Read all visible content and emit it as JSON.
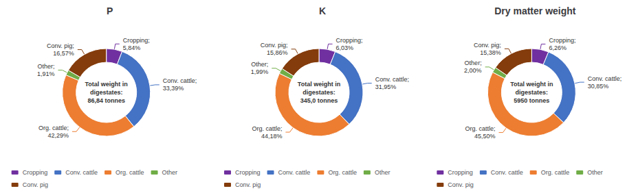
{
  "chart_data": [
    {
      "type": "pie",
      "title": "P",
      "categories": [
        "Cropping",
        "Conv. cattle",
        "Org. cattle",
        "Other",
        "Conv. pig"
      ],
      "values": [
        5.84,
        33.39,
        42.29,
        1.91,
        16.57
      ],
      "value_labels": [
        "Cropping;\n5,84%",
        "Conv. cattle;\n33,39%",
        "Org. cattle;\n42,29%",
        "Other;\n1,91%",
        "Conv. pig;\n16,57%"
      ],
      "colors": [
        "#7030a0",
        "#4472c4",
        "#ed7d31",
        "#70ad47",
        "#843c0c"
      ],
      "annotations": [
        "Total weight in\ndigestates:\n86,84 tonnes"
      ],
      "data_labels": true,
      "legend": "bottom"
    },
    {
      "type": "pie",
      "title": "K",
      "categories": [
        "Cropping",
        "Conv. cattle",
        "Org. cattle",
        "Other",
        "Conv. pig"
      ],
      "values": [
        6.03,
        31.95,
        44.18,
        1.99,
        15.86
      ],
      "value_labels": [
        "Cropping;\n6,03%",
        "Conv. cattle;\n31,95%",
        "Org. cattle;\n44,18%",
        "Other;\n1,99%",
        "Conv. pig;\n15,86%"
      ],
      "colors": [
        "#7030a0",
        "#4472c4",
        "#ed7d31",
        "#70ad47",
        "#843c0c"
      ],
      "annotations": [
        "Total weight in\ndigestates:\n345,0 tonnes"
      ],
      "data_labels": true,
      "legend": "bottom"
    },
    {
      "type": "pie",
      "title": "Dry matter weight",
      "categories": [
        "Cropping",
        "Conv. cattle",
        "Org. cattle",
        "Other",
        "Conv. pig"
      ],
      "values": [
        6.26,
        30.85,
        45.5,
        2.0,
        15.38
      ],
      "value_labels": [
        "Cropping;\n6,26%",
        "Conv. cattle;\n30,85%",
        "Org. cattle;\n45,50%",
        "Other;\n2,00%",
        "Conv. pig;\n15,38%"
      ],
      "colors": [
        "#7030a0",
        "#4472c4",
        "#ed7d31",
        "#70ad47",
        "#843c0c"
      ],
      "annotations": [
        "Total weight in\ndigestates:\n5950 tonnes"
      ],
      "data_labels": true,
      "legend": "bottom"
    }
  ]
}
